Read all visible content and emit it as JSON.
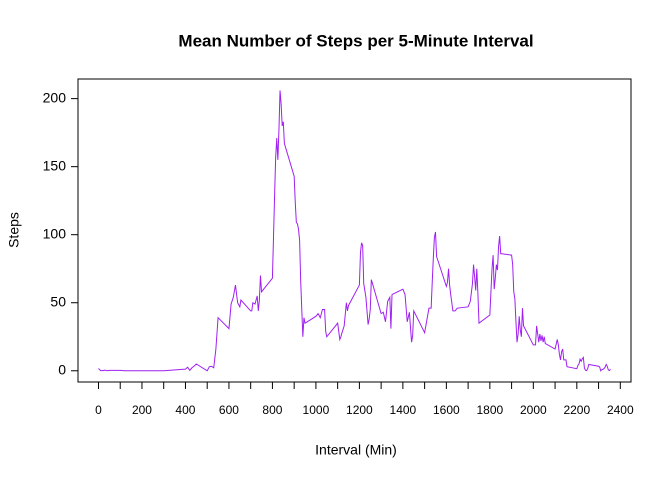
{
  "chart_data": {
    "type": "line",
    "title": "Mean Number of Steps per 5-Minute Interval",
    "x_label": "Interval (Min)",
    "y_label": "Steps",
    "x": [
      0,
      10,
      20,
      30,
      40,
      50,
      100,
      120,
      200,
      300,
      400,
      410,
      420,
      430,
      440,
      450,
      500,
      510,
      520,
      530,
      540,
      550,
      600,
      610,
      620,
      630,
      640,
      650,
      655,
      700,
      705,
      710,
      720,
      730,
      735,
      740,
      745,
      750,
      800,
      810,
      815,
      820,
      825,
      830,
      835,
      840,
      845,
      850,
      855,
      900,
      905,
      910,
      915,
      920,
      925,
      930,
      935,
      940,
      945,
      950,
      1000,
      1010,
      1020,
      1030,
      1040,
      1045,
      1050,
      1100,
      1110,
      1115,
      1120,
      1130,
      1140,
      1145,
      1150,
      1200,
      1205,
      1210,
      1215,
      1220,
      1230,
      1240,
      1245,
      1250,
      1255,
      1300,
      1310,
      1320,
      1330,
      1340,
      1345,
      1350,
      1400,
      1410,
      1420,
      1430,
      1440,
      1445,
      1450,
      1500,
      1510,
      1520,
      1530,
      1535,
      1540,
      1545,
      1550,
      1555,
      1600,
      1605,
      1610,
      1615,
      1620,
      1625,
      1630,
      1640,
      1650,
      1700,
      1710,
      1720,
      1725,
      1730,
      1735,
      1740,
      1745,
      1750,
      1800,
      1805,
      1810,
      1815,
      1820,
      1825,
      1830,
      1835,
      1840,
      1845,
      1850,
      1855,
      1900,
      1905,
      1910,
      1915,
      1920,
      1925,
      1930,
      1935,
      1940,
      1945,
      1950,
      1955,
      2000,
      2005,
      2010,
      2015,
      2020,
      2025,
      2030,
      2035,
      2040,
      2045,
      2050,
      2055,
      2100,
      2110,
      2115,
      2120,
      2125,
      2130,
      2135,
      2140,
      2145,
      2150,
      2155,
      2200,
      2205,
      2210,
      2215,
      2220,
      2225,
      2230,
      2235,
      2240,
      2245,
      2250,
      2255,
      2300,
      2305,
      2310,
      2315,
      2320,
      2325,
      2330,
      2335,
      2340,
      2345,
      2350,
      2355
    ],
    "series": [
      {
        "name": "Steps",
        "color": "#a020f0",
        "values": [
          1.7,
          0.1,
          0.1,
          0.5,
          0,
          0.3,
          0.3,
          0,
          0,
          0,
          1.2,
          2.6,
          0.3,
          2.2,
          3.4,
          5,
          0,
          3,
          3.3,
          2.2,
          16,
          39,
          31,
          49,
          54,
          63,
          50,
          47,
          52,
          44,
          44,
          50,
          49,
          55,
          44,
          52,
          70,
          58,
          68,
          129,
          157,
          171,
          155,
          177,
          206,
          196,
          180,
          183,
          167,
          143,
          124,
          109,
          108,
          104,
          96,
          66,
          45,
          25,
          39,
          35,
          40,
          42,
          39,
          45,
          45,
          29,
          25,
          35,
          23,
          25,
          28,
          33,
          50,
          44,
          48,
          63,
          87,
          94,
          92,
          64,
          54,
          34,
          38,
          45,
          67,
          42,
          43,
          36,
          51,
          54,
          31,
          56,
          60,
          56,
          36,
          43,
          21,
          26,
          44,
          28,
          37,
          46,
          46,
          65,
          83,
          98,
          102,
          84,
          62,
          65,
          75,
          63,
          56,
          50,
          44,
          44,
          46,
          47,
          51,
          64,
          78,
          69,
          59,
          75,
          57,
          35,
          41,
          58,
          75,
          85,
          60,
          68,
          78,
          74,
          91,
          99,
          86,
          86,
          85,
          78,
          58,
          53,
          36,
          21,
          27,
          40,
          30,
          25,
          46,
          33,
          19,
          19,
          19,
          33,
          27,
          21,
          27,
          22,
          26,
          21,
          25,
          20,
          16,
          23,
          19,
          12,
          8,
          14,
          16,
          8,
          8,
          8,
          3,
          1.5,
          4,
          5,
          8.5,
          7,
          8.7,
          9.8,
          2,
          0.4,
          0.1,
          1.6,
          4.6,
          3.3,
          2.8,
          0,
          0.8,
          1,
          1.6,
          2.6,
          4.7,
          3.3,
          0.6,
          0.2,
          1.1
        ]
      }
    ],
    "xlim": [
      -94.2,
      2449.2
    ],
    "ylim": [
      -8.25,
      214.42
    ],
    "xticks": [
      0,
      200,
      400,
      600,
      800,
      1000,
      1200,
      1400,
      1600,
      1800,
      2000,
      2200,
      2400
    ],
    "xminorticks": [
      100,
      300,
      500,
      700,
      900,
      1100,
      1300,
      1500,
      1700,
      1900,
      2100,
      2300
    ],
    "yticks": [
      0,
      50,
      100,
      150,
      200
    ]
  }
}
